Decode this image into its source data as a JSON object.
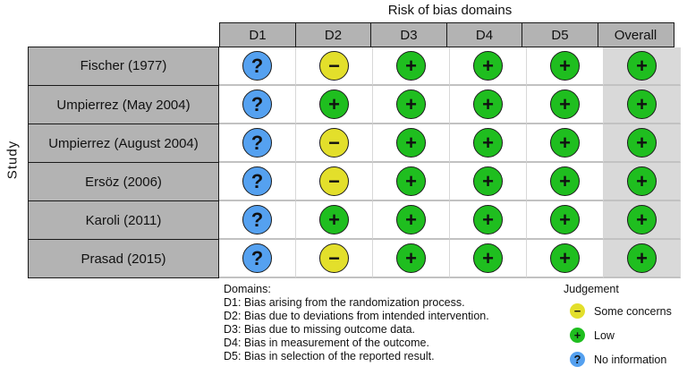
{
  "title": "Risk of bias domains",
  "axis_label": "Study",
  "columns": [
    "D1",
    "D2",
    "D3",
    "D4",
    "D5",
    "Overall"
  ],
  "rows": [
    {
      "study": "Fischer (1977)",
      "cells": [
        {
          "j": "noinfo",
          "sym": "?"
        },
        {
          "j": "some",
          "sym": "−"
        },
        {
          "j": "low",
          "sym": "+"
        },
        {
          "j": "low",
          "sym": "+"
        },
        {
          "j": "low",
          "sym": "+"
        },
        {
          "j": "low",
          "sym": "+"
        }
      ]
    },
    {
      "study": "Umpierrez (May 2004)",
      "cells": [
        {
          "j": "noinfo",
          "sym": "?"
        },
        {
          "j": "low",
          "sym": "+"
        },
        {
          "j": "low",
          "sym": "+"
        },
        {
          "j": "low",
          "sym": "+"
        },
        {
          "j": "low",
          "sym": "+"
        },
        {
          "j": "low",
          "sym": "+"
        }
      ]
    },
    {
      "study": "Umpierrez (August 2004)",
      "cells": [
        {
          "j": "noinfo",
          "sym": "?"
        },
        {
          "j": "some",
          "sym": "−"
        },
        {
          "j": "low",
          "sym": "+"
        },
        {
          "j": "low",
          "sym": "+"
        },
        {
          "j": "low",
          "sym": "+"
        },
        {
          "j": "low",
          "sym": "+"
        }
      ]
    },
    {
      "study": "Ersöz (2006)",
      "cells": [
        {
          "j": "noinfo",
          "sym": "?"
        },
        {
          "j": "some",
          "sym": "−"
        },
        {
          "j": "low",
          "sym": "+"
        },
        {
          "j": "low",
          "sym": "+"
        },
        {
          "j": "low",
          "sym": "+"
        },
        {
          "j": "low",
          "sym": "+"
        }
      ]
    },
    {
      "study": "Karoli (2011)",
      "cells": [
        {
          "j": "noinfo",
          "sym": "?"
        },
        {
          "j": "low",
          "sym": "+"
        },
        {
          "j": "low",
          "sym": "+"
        },
        {
          "j": "low",
          "sym": "+"
        },
        {
          "j": "low",
          "sym": "+"
        },
        {
          "j": "low",
          "sym": "+"
        }
      ]
    },
    {
      "study": "Prasad (2015)",
      "cells": [
        {
          "j": "noinfo",
          "sym": "?"
        },
        {
          "j": "some",
          "sym": "−"
        },
        {
          "j": "low",
          "sym": "+"
        },
        {
          "j": "low",
          "sym": "+"
        },
        {
          "j": "low",
          "sym": "+"
        },
        {
          "j": "low",
          "sym": "+"
        }
      ]
    }
  ],
  "footnote": {
    "heading": "Domains:",
    "lines": [
      "D1: Bias arising from the randomization process.",
      "D2: Bias due to deviations from intended intervention.",
      "D3: Bias due to missing outcome data.",
      "D4: Bias in measurement of the outcome.",
      "D5: Bias in selection of the reported result."
    ]
  },
  "legend": {
    "heading": "Judgement",
    "items": [
      {
        "key": "some",
        "sym": "−",
        "label": "Some concerns"
      },
      {
        "key": "low",
        "sym": "+",
        "label": "Low"
      },
      {
        "key": "noinfo",
        "sym": "?",
        "label": "No information"
      }
    ]
  },
  "colors": {
    "low": "#1fbe1f",
    "some_concerns": "#e3df2b",
    "no_information": "#55a1f0",
    "header_bg": "#b3b3b3",
    "overall_col_bg": "#d9d9d9"
  },
  "chart_data": {
    "type": "table",
    "title": "Risk of bias domains",
    "ylabel": "Study",
    "columns": [
      "D1",
      "D2",
      "D3",
      "D4",
      "D5",
      "Overall"
    ],
    "studies": [
      "Fischer (1977)",
      "Umpierrez (May 2004)",
      "Umpierrez (August 2004)",
      "Ersöz (2006)",
      "Karoli (2011)",
      "Prasad (2015)"
    ],
    "judgements": [
      [
        "No information",
        "Some concerns",
        "Low",
        "Low",
        "Low",
        "Low"
      ],
      [
        "No information",
        "Low",
        "Low",
        "Low",
        "Low",
        "Low"
      ],
      [
        "No information",
        "Some concerns",
        "Low",
        "Low",
        "Low",
        "Low"
      ],
      [
        "No information",
        "Some concerns",
        "Low",
        "Low",
        "Low",
        "Low"
      ],
      [
        "No information",
        "Low",
        "Low",
        "Low",
        "Low",
        "Low"
      ],
      [
        "No information",
        "Some concerns",
        "Low",
        "Low",
        "Low",
        "Low"
      ]
    ],
    "legend_symbols": {
      "Some concerns": "−",
      "Low": "+",
      "No information": "?"
    },
    "legend_position": "bottom-right"
  }
}
